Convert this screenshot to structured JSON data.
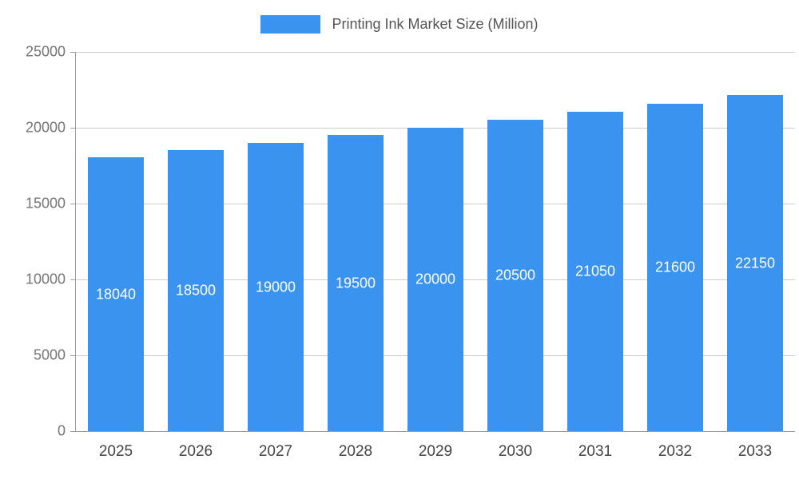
{
  "chart_data": {
    "type": "bar",
    "title": "Printing Ink Market Size (Million)",
    "categories": [
      "2025",
      "2026",
      "2027",
      "2028",
      "2029",
      "2030",
      "2031",
      "2032",
      "2033"
    ],
    "values": [
      18040,
      18500,
      19000,
      19500,
      20000,
      20500,
      21050,
      21600,
      22150
    ],
    "xlabel": "",
    "ylabel": "",
    "ylim": [
      0,
      25000
    ],
    "yticks": [
      0,
      5000,
      10000,
      15000,
      20000,
      25000
    ],
    "grid": true,
    "legend_position": "top-center",
    "bar_value_labels_inside": true,
    "colors": {
      "bar": "#3B93F0",
      "grid": "#cccccc",
      "axis": "#9e9e9e",
      "y_tick_label": "#757575",
      "x_tick_label": "#444444",
      "legend_text": "#555555",
      "bar_label_text": "#ffffff",
      "background": "#ffffff"
    }
  }
}
